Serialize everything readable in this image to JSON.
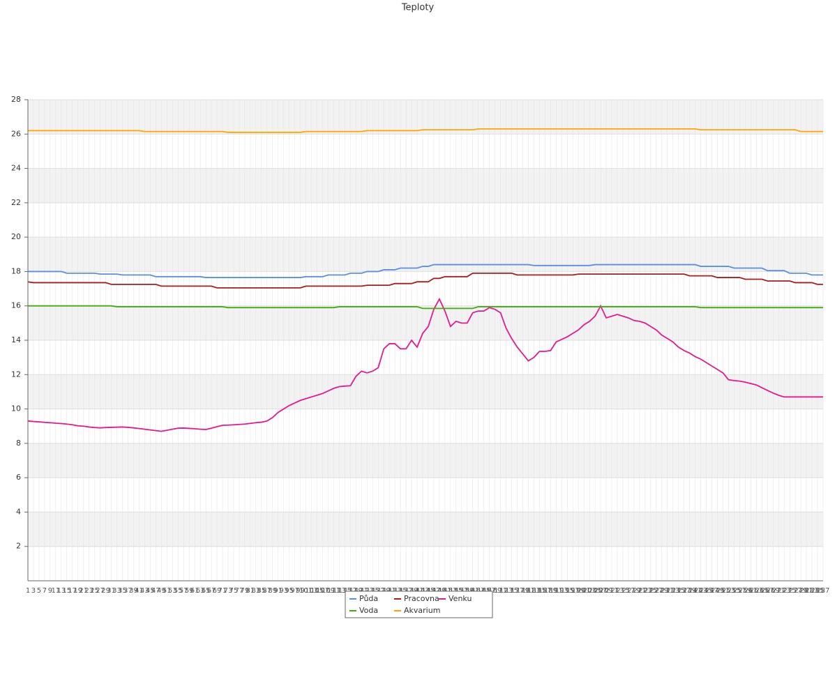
{
  "chart_data": {
    "type": "line",
    "title": "Teploty",
    "categories": [
      1,
      3,
      5,
      7,
      9,
      11,
      13,
      15,
      17,
      19,
      21,
      23,
      25,
      27,
      29,
      31,
      33,
      35,
      37,
      39,
      41,
      43,
      45,
      47,
      49,
      51,
      53,
      55,
      57,
      59,
      61,
      63,
      65,
      67,
      69,
      71,
      73,
      75,
      77,
      79,
      81,
      83,
      85,
      87,
      89,
      91,
      93,
      95,
      97,
      99,
      101,
      103,
      105,
      107,
      109,
      111,
      113,
      115,
      117,
      119,
      121,
      123,
      125,
      127,
      129,
      131,
      133,
      135,
      137,
      139,
      141,
      143,
      145,
      147,
      149,
      151,
      153,
      155,
      157,
      159,
      161,
      163,
      165,
      167,
      169,
      171,
      173,
      175,
      177,
      179,
      181,
      183,
      185,
      187,
      189,
      191,
      193,
      195,
      197,
      199,
      201,
      203,
      205,
      207,
      209,
      211,
      213,
      215,
      217,
      219,
      221,
      223,
      225,
      227,
      229,
      231,
      233,
      235,
      237,
      239,
      241,
      243,
      245,
      247,
      249,
      251,
      253,
      255,
      257,
      259,
      261,
      263,
      265,
      267,
      269,
      271,
      273,
      275,
      277,
      279,
      281,
      283,
      285,
      287
    ],
    "ylim": [
      0,
      28
    ],
    "yticks": [
      2,
      4,
      6,
      8,
      10,
      12,
      14,
      16,
      18,
      20,
      22,
      24,
      26,
      28
    ],
    "grid": true,
    "legend": "bottom",
    "series": [
      {
        "name": "Půda",
        "color": "#5b8ee0",
        "values": [
          18.0,
          18.0,
          18.0,
          18.0,
          18.0,
          18.0,
          18.0,
          17.9,
          17.9,
          17.9,
          17.9,
          17.9,
          17.9,
          17.85,
          17.85,
          17.85,
          17.85,
          17.8,
          17.8,
          17.8,
          17.8,
          17.8,
          17.8,
          17.7,
          17.7,
          17.7,
          17.7,
          17.7,
          17.7,
          17.7,
          17.7,
          17.7,
          17.65,
          17.65,
          17.65,
          17.65,
          17.65,
          17.65,
          17.65,
          17.65,
          17.65,
          17.65,
          17.65,
          17.65,
          17.65,
          17.65,
          17.65,
          17.65,
          17.65,
          17.65,
          17.7,
          17.7,
          17.7,
          17.7,
          17.8,
          17.8,
          17.8,
          17.8,
          17.9,
          17.9,
          17.9,
          18.0,
          18.0,
          18.0,
          18.1,
          18.1,
          18.1,
          18.2,
          18.2,
          18.2,
          18.2,
          18.3,
          18.3,
          18.4,
          18.4,
          18.4,
          18.4,
          18.4,
          18.4,
          18.4,
          18.4,
          18.4,
          18.4,
          18.4,
          18.4,
          18.4,
          18.4,
          18.4,
          18.4,
          18.4,
          18.4,
          18.35,
          18.35,
          18.35,
          18.35,
          18.35,
          18.35,
          18.35,
          18.35,
          18.35,
          18.35,
          18.35,
          18.4,
          18.4,
          18.4,
          18.4,
          18.4,
          18.4,
          18.4,
          18.4,
          18.4,
          18.4,
          18.4,
          18.4,
          18.4,
          18.4,
          18.4,
          18.4,
          18.4,
          18.4,
          18.4,
          18.3,
          18.3,
          18.3,
          18.3,
          18.3,
          18.3,
          18.2,
          18.2,
          18.2,
          18.2,
          18.2,
          18.2,
          18.05,
          18.05,
          18.05,
          18.05,
          17.9,
          17.9,
          17.9,
          17.9,
          17.8,
          17.8,
          17.8
        ]
      },
      {
        "name": "Pracovna",
        "color": "#a51d1d",
        "values": [
          17.4,
          17.35,
          17.35,
          17.35,
          17.35,
          17.35,
          17.35,
          17.35,
          17.35,
          17.35,
          17.35,
          17.35,
          17.35,
          17.35,
          17.35,
          17.25,
          17.25,
          17.25,
          17.25,
          17.25,
          17.25,
          17.25,
          17.25,
          17.25,
          17.15,
          17.15,
          17.15,
          17.15,
          17.15,
          17.15,
          17.15,
          17.15,
          17.15,
          17.15,
          17.05,
          17.05,
          17.05,
          17.05,
          17.05,
          17.05,
          17.05,
          17.05,
          17.05,
          17.05,
          17.05,
          17.05,
          17.05,
          17.05,
          17.05,
          17.05,
          17.15,
          17.15,
          17.15,
          17.15,
          17.15,
          17.15,
          17.15,
          17.15,
          17.15,
          17.15,
          17.15,
          17.2,
          17.2,
          17.2,
          17.2,
          17.2,
          17.3,
          17.3,
          17.3,
          17.3,
          17.4,
          17.4,
          17.4,
          17.6,
          17.6,
          17.7,
          17.7,
          17.7,
          17.7,
          17.7,
          17.9,
          17.9,
          17.9,
          17.9,
          17.9,
          17.9,
          17.9,
          17.9,
          17.8,
          17.8,
          17.8,
          17.8,
          17.8,
          17.8,
          17.8,
          17.8,
          17.8,
          17.8,
          17.8,
          17.85,
          17.85,
          17.85,
          17.85,
          17.85,
          17.85,
          17.85,
          17.85,
          17.85,
          17.85,
          17.85,
          17.85,
          17.85,
          17.85,
          17.85,
          17.85,
          17.85,
          17.85,
          17.85,
          17.85,
          17.75,
          17.75,
          17.75,
          17.75,
          17.75,
          17.65,
          17.65,
          17.65,
          17.65,
          17.65,
          17.55,
          17.55,
          17.55,
          17.55,
          17.45,
          17.45,
          17.45,
          17.45,
          17.45,
          17.35,
          17.35,
          17.35,
          17.35,
          17.25,
          17.25
        ]
      },
      {
        "name": "Venku",
        "color": "#e6198c",
        "values": [
          9.3,
          9.27,
          9.25,
          9.22,
          9.2,
          9.17,
          9.15,
          9.12,
          9.08,
          9.02,
          9.0,
          8.95,
          8.92,
          8.9,
          8.92,
          8.93,
          8.94,
          8.95,
          8.93,
          8.9,
          8.86,
          8.82,
          8.78,
          8.74,
          8.7,
          8.76,
          8.82,
          8.88,
          8.89,
          8.87,
          8.85,
          8.82,
          8.8,
          8.88,
          8.97,
          9.05,
          9.06,
          9.08,
          9.1,
          9.12,
          9.16,
          9.2,
          9.23,
          9.3,
          9.5,
          9.8,
          10.0,
          10.2,
          10.35,
          10.5,
          10.6,
          10.7,
          10.8,
          10.9,
          11.05,
          11.2,
          11.3,
          11.33,
          11.35,
          11.9,
          12.2,
          12.1,
          12.2,
          12.4,
          13.5,
          13.8,
          13.8,
          13.5,
          13.5,
          14.0,
          13.6,
          14.4,
          14.8,
          15.8,
          16.4,
          15.7,
          14.8,
          15.1,
          15.0,
          15.0,
          15.6,
          15.7,
          15.7,
          15.9,
          15.8,
          15.6,
          14.7,
          14.1,
          13.6,
          13.2,
          12.8,
          13.0,
          13.35,
          13.35,
          13.4,
          13.9,
          14.05,
          14.2,
          14.4,
          14.6,
          14.9,
          15.1,
          15.4,
          16.0,
          15.3,
          15.4,
          15.5,
          15.4,
          15.3,
          15.15,
          15.1,
          15.0,
          14.8,
          14.6,
          14.3,
          14.1,
          13.9,
          13.6,
          13.4,
          13.25,
          13.05,
          12.9,
          12.7,
          12.5,
          12.3,
          12.1,
          11.7,
          11.65,
          11.62,
          11.56,
          11.48,
          11.4,
          11.24,
          11.08,
          10.93,
          10.8,
          10.7,
          10.7,
          10.7,
          10.7,
          10.7,
          10.7,
          10.7,
          10.7
        ]
      },
      {
        "name": "Voda",
        "color": "#44aa11",
        "values": [
          16.0,
          16.0,
          16.0,
          16.0,
          16.0,
          16.0,
          16.0,
          16.0,
          16.0,
          16.0,
          16.0,
          16.0,
          16.0,
          16.0,
          16.0,
          16.0,
          15.95,
          15.95,
          15.95,
          15.95,
          15.95,
          15.95,
          15.95,
          15.95,
          15.95,
          15.95,
          15.95,
          15.95,
          15.95,
          15.95,
          15.95,
          15.95,
          15.95,
          15.95,
          15.95,
          15.95,
          15.9,
          15.9,
          15.9,
          15.9,
          15.9,
          15.9,
          15.9,
          15.9,
          15.9,
          15.9,
          15.9,
          15.9,
          15.9,
          15.9,
          15.9,
          15.9,
          15.9,
          15.9,
          15.9,
          15.9,
          15.95,
          15.95,
          15.95,
          15.95,
          15.95,
          15.95,
          15.95,
          15.95,
          15.95,
          15.95,
          15.95,
          15.95,
          15.95,
          15.95,
          15.95,
          15.85,
          15.85,
          15.85,
          15.85,
          15.85,
          15.85,
          15.85,
          15.85,
          15.85,
          15.85,
          15.95,
          15.95,
          15.95,
          15.95,
          15.95,
          15.95,
          15.95,
          15.95,
          15.95,
          15.95,
          15.95,
          15.95,
          15.95,
          15.95,
          15.95,
          15.95,
          15.95,
          15.95,
          15.95,
          15.95,
          15.95,
          15.95,
          15.95,
          15.95,
          15.95,
          15.95,
          15.95,
          15.95,
          15.95,
          15.95,
          15.95,
          15.95,
          15.95,
          15.95,
          15.95,
          15.95,
          15.95,
          15.95,
          15.95,
          15.95,
          15.9,
          15.9,
          15.9,
          15.9,
          15.9,
          15.9,
          15.9,
          15.9,
          15.9,
          15.9,
          15.9,
          15.9,
          15.9,
          15.9,
          15.9,
          15.9,
          15.9,
          15.9,
          15.9,
          15.9,
          15.9,
          15.9,
          15.9
        ]
      },
      {
        "name": "Akvarium",
        "color": "#ffa500",
        "values": [
          26.2,
          26.2,
          26.2,
          26.2,
          26.2,
          26.2,
          26.2,
          26.2,
          26.2,
          26.2,
          26.2,
          26.2,
          26.2,
          26.2,
          26.2,
          26.2,
          26.2,
          26.2,
          26.2,
          26.2,
          26.2,
          26.15,
          26.15,
          26.15,
          26.15,
          26.15,
          26.15,
          26.15,
          26.15,
          26.15,
          26.15,
          26.15,
          26.15,
          26.15,
          26.15,
          26.15,
          26.1,
          26.1,
          26.1,
          26.1,
          26.1,
          26.1,
          26.1,
          26.1,
          26.1,
          26.1,
          26.1,
          26.1,
          26.1,
          26.1,
          26.15,
          26.15,
          26.15,
          26.15,
          26.15,
          26.15,
          26.15,
          26.15,
          26.15,
          26.15,
          26.15,
          26.2,
          26.2,
          26.2,
          26.2,
          26.2,
          26.2,
          26.2,
          26.2,
          26.2,
          26.2,
          26.25,
          26.25,
          26.25,
          26.25,
          26.25,
          26.25,
          26.25,
          26.25,
          26.25,
          26.25,
          26.3,
          26.3,
          26.3,
          26.3,
          26.3,
          26.3,
          26.3,
          26.3,
          26.3,
          26.3,
          26.3,
          26.3,
          26.3,
          26.3,
          26.3,
          26.3,
          26.3,
          26.3,
          26.3,
          26.3,
          26.3,
          26.3,
          26.3,
          26.3,
          26.3,
          26.3,
          26.3,
          26.3,
          26.3,
          26.3,
          26.3,
          26.3,
          26.3,
          26.3,
          26.3,
          26.3,
          26.3,
          26.3,
          26.3,
          26.3,
          26.25,
          26.25,
          26.25,
          26.25,
          26.25,
          26.25,
          26.25,
          26.25,
          26.25,
          26.25,
          26.25,
          26.25,
          26.25,
          26.25,
          26.25,
          26.25,
          26.25,
          26.25,
          26.15,
          26.15,
          26.15,
          26.15,
          26.15
        ]
      }
    ]
  }
}
